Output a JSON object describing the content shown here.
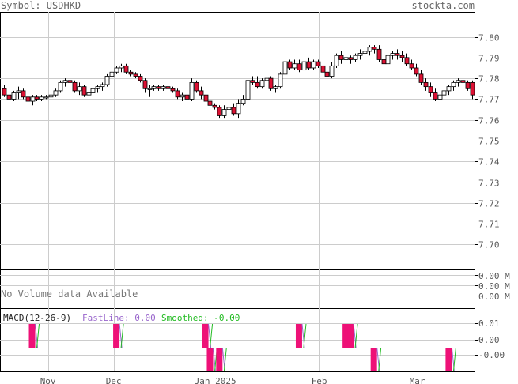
{
  "header": {
    "symbol_label": "Symbol: USDHKD",
    "brand": "stockta.com"
  },
  "colors": {
    "up_candle": "#ffffff",
    "down_candle": "#dd1133",
    "grid": "#cccccc",
    "macd_bar": "#ee1177",
    "fast_line": "#9966cc",
    "smoothed_line": "#22bb22"
  },
  "chart_data": [
    {
      "type": "candlestick",
      "price_axis": {
        "ylim": [
          7.688,
          7.812
        ],
        "ticks": [
          "7.80",
          "7.79",
          "7.78",
          "7.77",
          "7.76",
          "7.75",
          "7.74",
          "7.73",
          "7.72",
          "7.71",
          "7.70"
        ]
      },
      "x_ticks": [
        "Nov",
        "Dec",
        "Jan 2025",
        "Feb",
        "Mar"
      ],
      "ohlc": [
        [
          7.775,
          7.777,
          7.771,
          7.772
        ],
        [
          7.772,
          7.774,
          7.768,
          7.77
        ],
        [
          7.77,
          7.774,
          7.769,
          7.773
        ],
        [
          7.773,
          7.776,
          7.77,
          7.774
        ],
        [
          7.774,
          7.775,
          7.77,
          7.771
        ],
        [
          7.771,
          7.773,
          7.768,
          7.769
        ],
        [
          7.769,
          7.772,
          7.767,
          7.771
        ],
        [
          7.771,
          7.772,
          7.769,
          7.77
        ],
        [
          7.77,
          7.772,
          7.769,
          7.771
        ],
        [
          7.771,
          7.772,
          7.77,
          7.771
        ],
        [
          7.771,
          7.773,
          7.77,
          7.772
        ],
        [
          7.772,
          7.775,
          7.771,
          7.774
        ],
        [
          7.774,
          7.779,
          7.773,
          7.778
        ],
        [
          7.778,
          7.78,
          7.776,
          7.779
        ],
        [
          7.779,
          7.78,
          7.776,
          7.778
        ],
        [
          7.778,
          7.779,
          7.773,
          7.774
        ],
        [
          7.774,
          7.778,
          7.772,
          7.776
        ],
        [
          7.776,
          7.777,
          7.771,
          7.772
        ],
        [
          7.772,
          7.775,
          7.769,
          7.773
        ],
        [
          7.773,
          7.776,
          7.772,
          7.775
        ],
        [
          7.775,
          7.777,
          7.773,
          7.776
        ],
        [
          7.776,
          7.778,
          7.774,
          7.777
        ],
        [
          7.777,
          7.782,
          7.776,
          7.781
        ],
        [
          7.781,
          7.784,
          7.779,
          7.783
        ],
        [
          7.783,
          7.786,
          7.782,
          7.785
        ],
        [
          7.785,
          7.787,
          7.783,
          7.786
        ],
        [
          7.786,
          7.787,
          7.782,
          7.783
        ],
        [
          7.783,
          7.784,
          7.781,
          7.782
        ],
        [
          7.782,
          7.783,
          7.78,
          7.781
        ],
        [
          7.781,
          7.782,
          7.778,
          7.779
        ],
        [
          7.779,
          7.78,
          7.773,
          7.775
        ],
        [
          7.775,
          7.777,
          7.771,
          7.775
        ],
        [
          7.775,
          7.777,
          7.774,
          7.776
        ],
        [
          7.776,
          7.777,
          7.774,
          7.775
        ],
        [
          7.775,
          7.777,
          7.774,
          7.776
        ],
        [
          7.776,
          7.777,
          7.774,
          7.775
        ],
        [
          7.775,
          7.776,
          7.773,
          7.774
        ],
        [
          7.774,
          7.775,
          7.77,
          7.771
        ],
        [
          7.771,
          7.773,
          7.769,
          7.772
        ],
        [
          7.772,
          7.773,
          7.769,
          7.77
        ],
        [
          7.77,
          7.78,
          7.769,
          7.778
        ],
        [
          7.778,
          7.779,
          7.773,
          7.774
        ],
        [
          7.774,
          7.776,
          7.77,
          7.772
        ],
        [
          7.772,
          7.773,
          7.768,
          7.769
        ],
        [
          7.769,
          7.77,
          7.766,
          7.767
        ],
        [
          7.767,
          7.768,
          7.765,
          7.766
        ],
        [
          7.766,
          7.767,
          7.761,
          7.762
        ],
        [
          7.762,
          7.767,
          7.761,
          7.765
        ],
        [
          7.765,
          7.768,
          7.764,
          7.766
        ],
        [
          7.766,
          7.768,
          7.762,
          7.763
        ],
        [
          7.763,
          7.77,
          7.761,
          7.768
        ],
        [
          7.768,
          7.772,
          7.767,
          7.77
        ],
        [
          7.77,
          7.78,
          7.769,
          7.779
        ],
        [
          7.779,
          7.781,
          7.777,
          7.778
        ],
        [
          7.778,
          7.781,
          7.775,
          7.776
        ],
        [
          7.776,
          7.78,
          7.775,
          7.779
        ],
        [
          7.779,
          7.781,
          7.777,
          7.78
        ],
        [
          7.78,
          7.781,
          7.774,
          7.775
        ],
        [
          7.775,
          7.777,
          7.773,
          7.776
        ],
        [
          7.776,
          7.783,
          7.775,
          7.782
        ],
        [
          7.782,
          7.79,
          7.781,
          7.788
        ],
        [
          7.788,
          7.789,
          7.784,
          7.785
        ],
        [
          7.785,
          7.789,
          7.784,
          7.787
        ],
        [
          7.787,
          7.789,
          7.783,
          7.784
        ],
        [
          7.784,
          7.789,
          7.783,
          7.788
        ],
        [
          7.788,
          7.79,
          7.784,
          7.785
        ],
        [
          7.785,
          7.789,
          7.784,
          7.788
        ],
        [
          7.788,
          7.789,
          7.785,
          7.786
        ],
        [
          7.786,
          7.787,
          7.781,
          7.783
        ],
        [
          7.783,
          7.784,
          7.779,
          7.781
        ],
        [
          7.781,
          7.788,
          7.78,
          7.786
        ],
        [
          7.786,
          7.792,
          7.785,
          7.791
        ],
        [
          7.791,
          7.793,
          7.787,
          7.789
        ],
        [
          7.789,
          7.791,
          7.787,
          7.79
        ],
        [
          7.79,
          7.791,
          7.787,
          7.789
        ],
        [
          7.789,
          7.792,
          7.788,
          7.791
        ],
        [
          7.791,
          7.794,
          7.789,
          7.792
        ],
        [
          7.792,
          7.794,
          7.79,
          7.793
        ],
        [
          7.793,
          7.796,
          7.791,
          7.795
        ],
        [
          7.795,
          7.796,
          7.792,
          7.794
        ],
        [
          7.794,
          7.796,
          7.788,
          7.789
        ],
        [
          7.789,
          7.791,
          7.786,
          7.787
        ],
        [
          7.787,
          7.792,
          7.785,
          7.791
        ],
        [
          7.791,
          7.793,
          7.789,
          7.792
        ],
        [
          7.792,
          7.794,
          7.789,
          7.791
        ],
        [
          7.791,
          7.793,
          7.788,
          7.79
        ],
        [
          7.79,
          7.792,
          7.786,
          7.787
        ],
        [
          7.787,
          7.789,
          7.784,
          7.785
        ],
        [
          7.785,
          7.787,
          7.781,
          7.782
        ],
        [
          7.782,
          7.784,
          7.777,
          7.778
        ],
        [
          7.778,
          7.78,
          7.774,
          7.776
        ],
        [
          7.776,
          7.778,
          7.771,
          7.773
        ],
        [
          7.773,
          7.775,
          7.769,
          7.77
        ],
        [
          7.77,
          7.773,
          7.769,
          7.772
        ],
        [
          7.772,
          7.775,
          7.77,
          7.774
        ],
        [
          7.774,
          7.777,
          7.772,
          7.776
        ],
        [
          7.776,
          7.779,
          7.774,
          7.778
        ],
        [
          7.778,
          7.78,
          7.776,
          7.779
        ],
        [
          7.779,
          7.78,
          7.776,
          7.778
        ],
        [
          7.778,
          7.779,
          7.774,
          7.775
        ],
        [
          7.778,
          7.779,
          7.77,
          7.772
        ]
      ]
    },
    {
      "type": "volume",
      "note_text": "No Volume data Available",
      "axis_labels": [
        "0.00 M",
        "0.00 M",
        "0.00 M"
      ]
    },
    {
      "type": "macd",
      "title": "MACD(12-26-9)",
      "fastline_label": "FastLine: 0.00",
      "smoothed_label": "Smoothed: -0.00",
      "axis_ticks": [
        "0.01",
        "0.00",
        "-0.00"
      ],
      "histogram": [
        {
          "bar": 6,
          "sign": 1
        },
        {
          "bar": 24,
          "sign": 1
        },
        {
          "bar": 43,
          "sign": 1
        },
        {
          "bar": 44,
          "sign": -1
        },
        {
          "bar": 46,
          "sign": -1
        },
        {
          "bar": 63,
          "sign": 1
        },
        {
          "bar": 73,
          "sign": 1
        },
        {
          "bar": 74,
          "sign": 1
        },
        {
          "bar": 79,
          "sign": -1
        },
        {
          "bar": 95,
          "sign": -1
        }
      ]
    }
  ]
}
